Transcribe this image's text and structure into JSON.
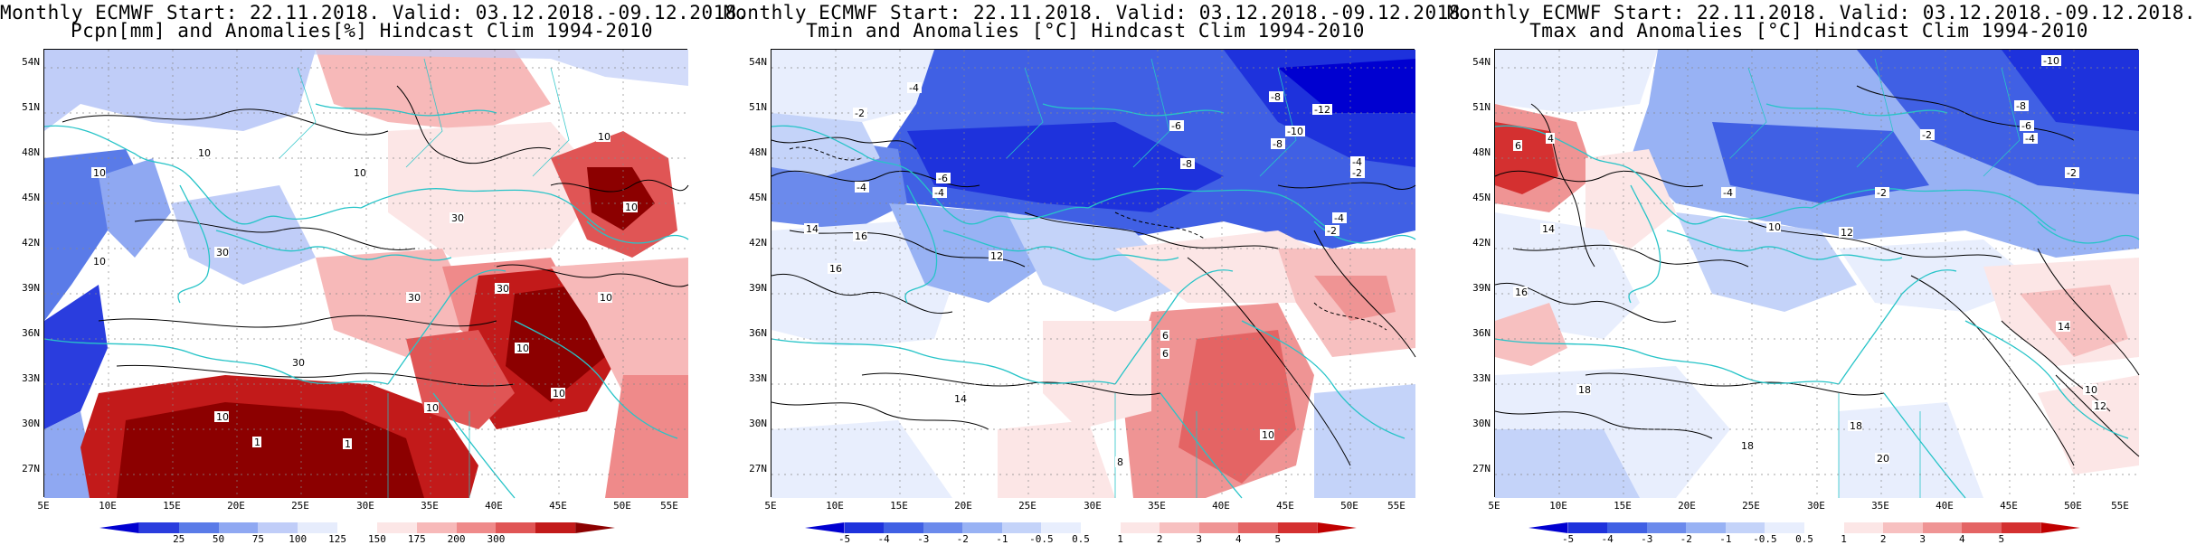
{
  "panels": [
    {
      "title_line1": "Monthly ECMWF Start: 22.11.2018. Valid: 03.12.2018.-09.12.2018.",
      "title_line2": "Pcpn[mm] and Anomalies[%] Hindcast Clim 1994-2010",
      "colorbar": {
        "colors": [
          "#0000d0",
          "#2a3dde",
          "#5a7be8",
          "#8fa8f2",
          "#c0cdf8",
          "#e6ecfc",
          "#ffffff",
          "#fce6e6",
          "#f7b9b9",
          "#ef8a8a",
          "#e05555",
          "#c21a1a",
          "#8c0000"
        ],
        "ticks": [
          "25",
          "50",
          "75",
          "100",
          "125",
          "150",
          "175",
          "200",
          "300"
        ]
      },
      "labels": [
        {
          "text": "10"
        },
        {
          "text": "10"
        },
        {
          "text": "10"
        },
        {
          "text": "10"
        },
        {
          "text": "30"
        },
        {
          "text": "30"
        },
        {
          "text": "30"
        },
        {
          "text": "10"
        },
        {
          "text": "10"
        },
        {
          "text": "30"
        },
        {
          "text": "10"
        },
        {
          "text": "10"
        },
        {
          "text": "30"
        },
        {
          "text": "10"
        },
        {
          "text": "1"
        },
        {
          "text": "1"
        },
        {
          "text": "10"
        },
        {
          "text": "10"
        }
      ]
    },
    {
      "title_line1": "Monthly ECMWF Start: 22.11.2018. Valid: 03.12.2018.-09.12.2018.",
      "title_line2": "Tmin and Anomalies [°C] Hindcast Clim 1994-2010",
      "colorbar": {
        "colors": [
          "#0000d0",
          "#1e32dc",
          "#4060e4",
          "#6b8aec",
          "#98b2f4",
          "#c4d3f9",
          "#e8eefd",
          "#ffffff",
          "#fce6e6",
          "#f7c0c0",
          "#ef9494",
          "#e46464",
          "#d43030",
          "#c00000"
        ],
        "ticks": [
          "-5",
          "-4",
          "-3",
          "-2",
          "-1",
          "-0.5",
          "0.5",
          "1",
          "2",
          "3",
          "4",
          "5"
        ]
      },
      "labels": [
        {
          "text": "-4"
        },
        {
          "text": "-2"
        },
        {
          "text": "-8"
        },
        {
          "text": "-12"
        },
        {
          "text": "-10"
        },
        {
          "text": "-8"
        },
        {
          "text": "-6"
        },
        {
          "text": "-4"
        },
        {
          "text": "-2"
        },
        {
          "text": "-4"
        },
        {
          "text": "-6"
        },
        {
          "text": "-8"
        },
        {
          "text": "-4"
        },
        {
          "text": "14"
        },
        {
          "text": "16"
        },
        {
          "text": "14"
        },
        {
          "text": "6"
        },
        {
          "text": "-4"
        },
        {
          "text": "-2"
        },
        {
          "text": "16"
        },
        {
          "text": "6"
        },
        {
          "text": "10"
        },
        {
          "text": "12"
        },
        {
          "text": "8"
        }
      ]
    },
    {
      "title_line1": "Monthly ECMWF Start: 22.11.2018. Valid: 03.12.2018.-09.12.2018.",
      "title_line2": "Tmax and Anomalies [°C] Hindcast Clim 1994-2010",
      "colorbar": {
        "colors": [
          "#0000d0",
          "#1e32dc",
          "#4060e4",
          "#6b8aec",
          "#98b2f4",
          "#c4d3f9",
          "#e8eefd",
          "#ffffff",
          "#fce6e6",
          "#f7c0c0",
          "#ef9494",
          "#e46464",
          "#d43030",
          "#c00000"
        ],
        "ticks": [
          "-5",
          "-4",
          "-3",
          "-2",
          "-1",
          "-0.5",
          "0.5",
          "1",
          "2",
          "3",
          "4",
          "5"
        ]
      },
      "labels": [
        {
          "text": "-10"
        },
        {
          "text": "-8"
        },
        {
          "text": "-6"
        },
        {
          "text": "-4"
        },
        {
          "text": "-2"
        },
        {
          "text": "-2"
        },
        {
          "text": "-4"
        },
        {
          "text": "-2"
        },
        {
          "text": "4"
        },
        {
          "text": "6"
        },
        {
          "text": "10"
        },
        {
          "text": "12"
        },
        {
          "text": "14"
        },
        {
          "text": "16"
        },
        {
          "text": "18"
        },
        {
          "text": "18"
        },
        {
          "text": "20"
        },
        {
          "text": "18"
        },
        {
          "text": "12"
        },
        {
          "text": "10"
        },
        {
          "text": "14"
        }
      ]
    }
  ],
  "axes": {
    "lat_labels": [
      "54N",
      "51N",
      "48N",
      "45N",
      "42N",
      "39N",
      "36N",
      "33N",
      "30N",
      "27N"
    ],
    "lon_labels": [
      "5E",
      "10E",
      "15E",
      "20E",
      "25E",
      "30E",
      "35E",
      "40E",
      "45E",
      "50E",
      "55E"
    ]
  }
}
